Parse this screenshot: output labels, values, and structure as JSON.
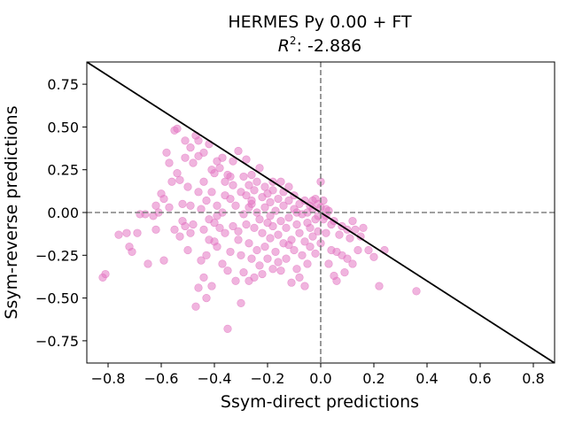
{
  "chart_data": {
    "type": "scatter",
    "title": "HERMES Py 0.00 + FT",
    "subtitle": {
      "r2_symbol": "R",
      "r2_exponent": "2",
      "r2_text": ": -2.886"
    },
    "xlabel": "Ssym-direct predictions",
    "ylabel": "Ssym-reverse predictions",
    "xlim": [
      -0.88,
      0.88
    ],
    "ylim": [
      -0.88,
      0.88
    ],
    "xticks": [
      -0.8,
      -0.6,
      -0.4,
      -0.2,
      0.0,
      0.2,
      0.4,
      0.6,
      0.8
    ],
    "xtick_labels": [
      "−0.8",
      "−0.6",
      "−0.4",
      "−0.2",
      "0.0",
      "0.2",
      "0.4",
      "0.6",
      "0.8"
    ],
    "yticks": [
      0.75,
      0.5,
      0.25,
      0.0,
      -0.25,
      -0.5,
      -0.75
    ],
    "ytick_labels": [
      "0.75",
      "0.50",
      "0.25",
      "0.00",
      "−0.25",
      "−0.50",
      "−0.75"
    ],
    "grid": false,
    "colors": {
      "points": "#e377c2",
      "diagonal": "#000000",
      "zero_lines": "#808080"
    },
    "reference_lines": [
      {
        "kind": "diagonal",
        "slope": -1,
        "style": "solid"
      },
      {
        "kind": "vertical",
        "x": 0.0,
        "style": "dashed"
      },
      {
        "kind": "horizontal",
        "y": 0.0,
        "style": "dashed"
      }
    ],
    "points": [
      [
        -0.82,
        -0.38
      ],
      [
        -0.81,
        -0.36
      ],
      [
        -0.76,
        -0.13
      ],
      [
        -0.73,
        -0.12
      ],
      [
        -0.72,
        -0.2
      ],
      [
        -0.71,
        -0.23
      ],
      [
        -0.69,
        -0.12
      ],
      [
        -0.68,
        -0.01
      ],
      [
        -0.66,
        -0.01
      ],
      [
        -0.65,
        -0.3
      ],
      [
        -0.63,
        -0.02
      ],
      [
        -0.62,
        -0.1
      ],
      [
        -0.62,
        0.04
      ],
      [
        -0.61,
        0.0
      ],
      [
        -0.6,
        0.11
      ],
      [
        -0.59,
        0.08
      ],
      [
        -0.59,
        -0.28
      ],
      [
        -0.58,
        0.35
      ],
      [
        -0.57,
        0.03
      ],
      [
        -0.56,
        0.18
      ],
      [
        -0.55,
        0.48
      ],
      [
        -0.55,
        -0.1
      ],
      [
        -0.54,
        0.49
      ],
      [
        -0.54,
        0.23
      ],
      [
        -0.53,
        0.19
      ],
      [
        -0.53,
        -0.14
      ],
      [
        -0.52,
        0.05
      ],
      [
        -0.52,
        -0.05
      ],
      [
        -0.51,
        0.42
      ],
      [
        -0.51,
        -0.08
      ],
      [
        -0.5,
        0.15
      ],
      [
        -0.5,
        -0.22
      ],
      [
        -0.49,
        0.04
      ],
      [
        -0.49,
        0.38
      ],
      [
        -0.48,
        0.29
      ],
      [
        -0.48,
        -0.07
      ],
      [
        -0.47,
        0.45
      ],
      [
        -0.47,
        -0.55
      ],
      [
        -0.46,
        0.42
      ],
      [
        -0.46,
        0.12
      ],
      [
        -0.46,
        -0.44
      ],
      [
        -0.45,
        -0.28
      ],
      [
        -0.45,
        0.02
      ],
      [
        -0.44,
        0.35
      ],
      [
        -0.44,
        0.18
      ],
      [
        -0.44,
        -0.1
      ],
      [
        -0.43,
        -0.5
      ],
      [
        -0.43,
        0.07
      ],
      [
        -0.43,
        -0.25
      ],
      [
        -0.42,
        -0.04
      ],
      [
        -0.42,
        0.4
      ],
      [
        -0.42,
        -0.16
      ],
      [
        -0.41,
        0.25
      ],
      [
        -0.41,
        0.12
      ],
      [
        -0.41,
        -0.43
      ],
      [
        -0.4,
        0.23
      ],
      [
        -0.4,
        -0.06
      ],
      [
        -0.4,
        -0.17
      ],
      [
        -0.39,
        0.3
      ],
      [
        -0.39,
        0.04
      ],
      [
        -0.39,
        -0.2
      ],
      [
        -0.38,
        0.26
      ],
      [
        -0.38,
        -0.09
      ],
      [
        -0.37,
        0.32
      ],
      [
        -0.37,
        0.0
      ],
      [
        -0.37,
        -0.3
      ],
      [
        -0.36,
        0.1
      ],
      [
        -0.36,
        -0.12
      ],
      [
        -0.35,
        0.22
      ],
      [
        -0.35,
        -0.68
      ],
      [
        -0.35,
        -0.34
      ],
      [
        -0.34,
        0.08
      ],
      [
        -0.34,
        -0.23
      ],
      [
        -0.33,
        0.3
      ],
      [
        -0.33,
        0.16
      ],
      [
        -0.33,
        -0.08
      ],
      [
        -0.32,
        0.04
      ],
      [
        -0.32,
        -0.4
      ],
      [
        -0.31,
        0.36
      ],
      [
        -0.31,
        -0.16
      ],
      [
        -0.3,
        0.12
      ],
      [
        -0.3,
        -0.53
      ],
      [
        -0.3,
        -0.25
      ],
      [
        -0.29,
        0.21
      ],
      [
        -0.29,
        -0.01
      ],
      [
        -0.29,
        -0.35
      ],
      [
        -0.28,
        0.31
      ],
      [
        -0.28,
        0.1
      ],
      [
        -0.28,
        -0.07
      ],
      [
        -0.27,
        -0.18
      ],
      [
        -0.27,
        0.16
      ],
      [
        -0.27,
        -0.4
      ],
      [
        -0.26,
        0.05
      ],
      [
        -0.26,
        -0.27
      ],
      [
        -0.26,
        0.22
      ],
      [
        -0.25,
        0.13
      ],
      [
        -0.25,
        -0.09
      ],
      [
        -0.25,
        -0.38
      ],
      [
        -0.24,
        0.0
      ],
      [
        -0.24,
        0.18
      ],
      [
        -0.24,
        -0.22
      ],
      [
        -0.23,
        0.26
      ],
      [
        -0.23,
        -0.04
      ],
      [
        -0.23,
        -0.31
      ],
      [
        -0.22,
        0.09
      ],
      [
        -0.22,
        -0.12
      ],
      [
        -0.21,
        0.15
      ],
      [
        -0.21,
        0.03
      ],
      [
        -0.21,
        -0.2
      ],
      [
        -0.2,
        0.11
      ],
      [
        -0.2,
        -0.06
      ],
      [
        -0.2,
        -0.27
      ],
      [
        -0.19,
        0.06
      ],
      [
        -0.19,
        -0.02
      ],
      [
        -0.19,
        -0.15
      ],
      [
        -0.18,
        0.13
      ],
      [
        -0.18,
        -0.08
      ],
      [
        -0.18,
        -0.33
      ],
      [
        -0.17,
        0.01
      ],
      [
        -0.17,
        -0.23
      ],
      [
        -0.16,
        0.08
      ],
      [
        -0.16,
        -0.13
      ],
      [
        -0.15,
        -0.05
      ],
      [
        -0.15,
        -0.34
      ],
      [
        -0.14,
        0.04
      ],
      [
        -0.14,
        -0.18
      ],
      [
        -0.14,
        0.12
      ],
      [
        -0.13,
        -0.09
      ],
      [
        -0.13,
        -0.27
      ],
      [
        -0.12,
        0.07
      ],
      [
        -0.12,
        -0.03
      ],
      [
        -0.11,
        -0.16
      ],
      [
        -0.11,
        -0.41
      ],
      [
        -0.1,
        0.02
      ],
      [
        -0.1,
        -0.22
      ],
      [
        -0.1,
        0.1
      ],
      [
        -0.09,
        -0.07
      ],
      [
        -0.09,
        -0.33
      ],
      [
        -0.08,
        0.05
      ],
      [
        -0.08,
        -0.12
      ],
      [
        -0.07,
        -0.01
      ],
      [
        -0.07,
        -0.25
      ],
      [
        -0.06,
        0.07
      ],
      [
        -0.06,
        -0.17
      ],
      [
        -0.06,
        -0.43
      ],
      [
        -0.05,
        0.0
      ],
      [
        -0.05,
        -0.3
      ],
      [
        -0.04,
        0.04
      ],
      [
        -0.04,
        -0.09
      ],
      [
        -0.04,
        -0.2
      ],
      [
        -0.03,
        0.02
      ],
      [
        -0.03,
        -0.14
      ],
      [
        -0.02,
        0.08
      ],
      [
        -0.02,
        -0.04
      ],
      [
        -0.02,
        -0.24
      ],
      [
        -0.01,
        0.05
      ],
      [
        -0.01,
        -0.11
      ],
      [
        0.0,
        0.18
      ],
      [
        0.0,
        -0.18
      ],
      [
        0.0,
        0.03
      ],
      [
        0.01,
        -0.04
      ],
      [
        0.01,
        0.07
      ],
      [
        0.02,
        -0.02
      ],
      [
        0.02,
        0.02
      ],
      [
        0.02,
        -0.12
      ],
      [
        0.03,
        0.01
      ],
      [
        0.03,
        -0.3
      ],
      [
        0.04,
        -0.07
      ],
      [
        0.04,
        -0.22
      ],
      [
        0.05,
        -0.37
      ],
      [
        0.06,
        -0.23
      ],
      [
        0.06,
        -0.4
      ],
      [
        0.07,
        -0.13
      ],
      [
        0.08,
        -0.08
      ],
      [
        0.08,
        -0.25
      ],
      [
        0.09,
        -0.35
      ],
      [
        0.1,
        -0.1
      ],
      [
        0.1,
        -0.27
      ],
      [
        0.11,
        -0.15
      ],
      [
        0.12,
        -0.05
      ],
      [
        0.12,
        -0.3
      ],
      [
        0.13,
        -0.1
      ],
      [
        0.14,
        -0.22
      ],
      [
        0.15,
        -0.14
      ],
      [
        0.16,
        -0.09
      ],
      [
        0.18,
        -0.22
      ],
      [
        0.2,
        -0.26
      ],
      [
        0.22,
        -0.43
      ],
      [
        0.24,
        -0.22
      ],
      [
        0.36,
        -0.46
      ],
      [
        -0.57,
        0.29
      ],
      [
        -0.51,
        0.32
      ],
      [
        -0.46,
        0.33
      ],
      [
        -0.36,
        0.18
      ],
      [
        -0.26,
        0.07
      ],
      [
        -0.15,
        0.18
      ],
      [
        -0.12,
        0.15
      ],
      [
        -0.08,
        -0.38
      ],
      [
        -0.49,
        -0.12
      ],
      [
        -0.44,
        -0.38
      ],
      [
        -0.39,
        -0.02
      ],
      [
        -0.34,
        0.21
      ],
      [
        -0.31,
        -0.11
      ],
      [
        -0.27,
        0.03
      ],
      [
        -0.22,
        -0.36
      ],
      [
        -0.18,
        0.18
      ],
      [
        -0.16,
        -0.29
      ],
      [
        -0.12,
        -0.19
      ],
      [
        -0.09,
        0.0
      ],
      [
        -0.05,
        -0.06
      ],
      [
        -0.03,
        0.07
      ],
      [
        -0.01,
        -0.02
      ],
      [
        0.05,
        -0.05
      ]
    ]
  }
}
